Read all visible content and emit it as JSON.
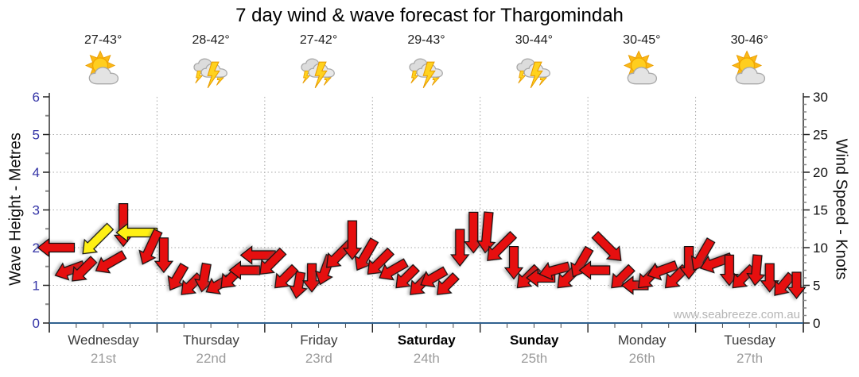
{
  "title": "7 day wind & wave forecast for Thargomindah",
  "watermark": "www.seabreeze.com.au",
  "days": [
    {
      "name": "Wednesday",
      "date": "21st",
      "temp": "27-43°",
      "icon": "sun-cloud",
      "bold": false
    },
    {
      "name": "Thursday",
      "date": "22nd",
      "temp": "28-42°",
      "icon": "thunderstorm",
      "bold": false
    },
    {
      "name": "Friday",
      "date": "23rd",
      "temp": "27-42°",
      "icon": "thunderstorm",
      "bold": false
    },
    {
      "name": "Saturday",
      "date": "24th",
      "temp": "29-43°",
      "icon": "thunderstorm",
      "bold": true
    },
    {
      "name": "Sunday",
      "date": "25th",
      "temp": "30-44°",
      "icon": "thunderstorm",
      "bold": true
    },
    {
      "name": "Monday",
      "date": "26th",
      "temp": "30-45°",
      "icon": "sun-cloud",
      "bold": false
    },
    {
      "name": "Tuesday",
      "date": "27th",
      "temp": "30-46°",
      "icon": "sun-cloud",
      "bold": false
    }
  ],
  "colors": {
    "arrow_red": "#E60F0F",
    "arrow_yellow": "#FFF014",
    "arrow_outline": "#101010",
    "axis_blue": "#30618F",
    "axis_line": "#222222",
    "grid": "#a8a8a8",
    "left_tick_label": "#3333A6",
    "right_tick_label": "#111111",
    "minor_tick": "#888888"
  },
  "chart_data": {
    "type": "scatter",
    "marker": "directional wind arrow (points downwind; length scales with knots)",
    "title": "7 day wind & wave forecast for Thargomindah",
    "x_categories": [
      "Wednesday 21st",
      "Thursday 22nd",
      "Friday 23rd",
      "Saturday 24th",
      "Sunday 25th",
      "Monday 26th",
      "Tuesday 27th"
    ],
    "x_unit": "hours from start of Wednesday, 3-hourly",
    "y_left": {
      "label": "Wave Height - Metres",
      "range": [
        0,
        6
      ],
      "ticks": [
        0,
        1,
        2,
        3,
        4,
        5,
        6
      ]
    },
    "y_right": {
      "label": "Wind Speed - Knots",
      "range": [
        0,
        30
      ],
      "ticks": [
        0,
        5,
        10,
        15,
        20,
        25,
        30
      ]
    },
    "grid": "dotted horizontal lines at 1-5 m (5-25 kn); dotted vertical lines at day boundaries",
    "points": [
      {
        "t": 0,
        "knots": 10,
        "dir_deg": 180,
        "color": "red"
      },
      {
        "t": 3,
        "knots": 7,
        "dir_deg": 160,
        "color": "red"
      },
      {
        "t": 6,
        "knots": 7,
        "dir_deg": 135,
        "color": "red"
      },
      {
        "t": 9,
        "knots": 11,
        "dir_deg": 135,
        "color": "yellow"
      },
      {
        "t": 12,
        "knots": 8,
        "dir_deg": 150,
        "color": "red"
      },
      {
        "t": 15,
        "knots": 13,
        "dir_deg": 90,
        "color": "red"
      },
      {
        "t": 18,
        "knots": 12,
        "dir_deg": 180,
        "color": "yellow"
      },
      {
        "t": 21,
        "knots": 10,
        "dir_deg": 115,
        "color": "red"
      },
      {
        "t": 24,
        "knots": 9,
        "dir_deg": 90,
        "color": "red"
      },
      {
        "t": 27,
        "knots": 6,
        "dir_deg": 120,
        "color": "red"
      },
      {
        "t": 30,
        "knots": 5,
        "dir_deg": 135,
        "color": "red"
      },
      {
        "t": 33,
        "knots": 6,
        "dir_deg": 100,
        "color": "red"
      },
      {
        "t": 36,
        "knots": 5,
        "dir_deg": 150,
        "color": "red"
      },
      {
        "t": 39,
        "knots": 6,
        "dir_deg": 135,
        "color": "red"
      },
      {
        "t": 42,
        "knots": 7,
        "dir_deg": 180,
        "color": "red"
      },
      {
        "t": 45,
        "knots": 9,
        "dir_deg": 180,
        "color": "red"
      },
      {
        "t": 48,
        "knots": 8,
        "dir_deg": 135,
        "color": "red"
      },
      {
        "t": 51,
        "knots": 6,
        "dir_deg": 135,
        "color": "red"
      },
      {
        "t": 54,
        "knots": 5,
        "dir_deg": 100,
        "color": "red"
      },
      {
        "t": 57,
        "knots": 6,
        "dir_deg": 90,
        "color": "red"
      },
      {
        "t": 60,
        "knots": 7,
        "dir_deg": 110,
        "color": "red"
      },
      {
        "t": 63,
        "knots": 9,
        "dir_deg": 135,
        "color": "red"
      },
      {
        "t": 66,
        "knots": 11,
        "dir_deg": 90,
        "color": "red"
      },
      {
        "t": 69,
        "knots": 9,
        "dir_deg": 120,
        "color": "red"
      },
      {
        "t": 72,
        "knots": 8,
        "dir_deg": 135,
        "color": "red"
      },
      {
        "t": 75,
        "knots": 7,
        "dir_deg": 150,
        "color": "red"
      },
      {
        "t": 78,
        "knots": 6,
        "dir_deg": 135,
        "color": "red"
      },
      {
        "t": 81,
        "knots": 5,
        "dir_deg": 135,
        "color": "red"
      },
      {
        "t": 84,
        "knots": 6,
        "dir_deg": 150,
        "color": "red"
      },
      {
        "t": 87,
        "knots": 5,
        "dir_deg": 135,
        "color": "red"
      },
      {
        "t": 90,
        "knots": 10,
        "dir_deg": 90,
        "color": "red"
      },
      {
        "t": 93,
        "knots": 12,
        "dir_deg": 90,
        "color": "red"
      },
      {
        "t": 96,
        "knots": 12,
        "dir_deg": 95,
        "color": "red"
      },
      {
        "t": 99,
        "knots": 10,
        "dir_deg": 135,
        "color": "red"
      },
      {
        "t": 102,
        "knots": 8,
        "dir_deg": 90,
        "color": "red"
      },
      {
        "t": 105,
        "knots": 6,
        "dir_deg": 135,
        "color": "red"
      },
      {
        "t": 108,
        "knots": 6,
        "dir_deg": 180,
        "color": "red"
      },
      {
        "t": 111,
        "knots": 7,
        "dir_deg": 165,
        "color": "red"
      },
      {
        "t": 114,
        "knots": 6,
        "dir_deg": 135,
        "color": "red"
      },
      {
        "t": 117,
        "knots": 8,
        "dir_deg": 120,
        "color": "red"
      },
      {
        "t": 120,
        "knots": 7,
        "dir_deg": 180,
        "color": "red"
      },
      {
        "t": 123,
        "knots": 10,
        "dir_deg": 45,
        "color": "red"
      },
      {
        "t": 126,
        "knots": 6,
        "dir_deg": 135,
        "color": "red"
      },
      {
        "t": 129,
        "knots": 5,
        "dir_deg": 180,
        "color": "red"
      },
      {
        "t": 132,
        "knots": 6,
        "dir_deg": 135,
        "color": "red"
      },
      {
        "t": 135,
        "knots": 7,
        "dir_deg": 160,
        "color": "red"
      },
      {
        "t": 138,
        "knots": 6,
        "dir_deg": 135,
        "color": "red"
      },
      {
        "t": 141,
        "knots": 8,
        "dir_deg": 90,
        "color": "red"
      },
      {
        "t": 144,
        "knots": 9,
        "dir_deg": 120,
        "color": "red"
      },
      {
        "t": 147,
        "knots": 8,
        "dir_deg": 160,
        "color": "red"
      },
      {
        "t": 150,
        "knots": 7,
        "dir_deg": 90,
        "color": "red"
      },
      {
        "t": 153,
        "knots": 6,
        "dir_deg": 135,
        "color": "red"
      },
      {
        "t": 156,
        "knots": 7,
        "dir_deg": 95,
        "color": "red"
      },
      {
        "t": 159,
        "knots": 6,
        "dir_deg": 90,
        "color": "red"
      },
      {
        "t": 162,
        "knots": 5,
        "dir_deg": 130,
        "color": "red"
      },
      {
        "t": 165,
        "knots": 5,
        "dir_deg": 90,
        "color": "red"
      }
    ]
  }
}
